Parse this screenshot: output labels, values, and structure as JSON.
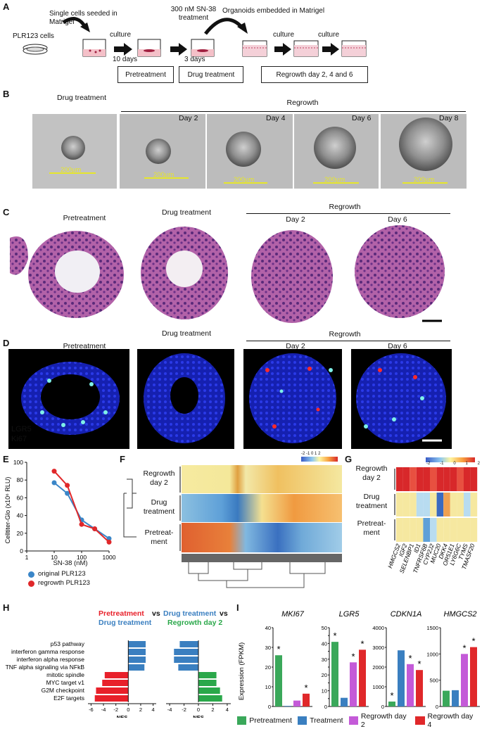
{
  "panels": {
    "A": "A",
    "B": "B",
    "C": "C",
    "D": "D",
    "E": "E",
    "F": "F",
    "G": "G",
    "H": "H",
    "I": "I"
  },
  "panelA": {
    "cells_label": "PLR123 cells",
    "seed_label": "Single cells seeded in Matrigel",
    "culture1": "culture",
    "days10": "10 days",
    "sn38": "300 nM SN-38 treatment",
    "days3": "3 days",
    "embedded": "Organoids embedded in Matrigel",
    "culture2": "culture",
    "culture3": "culture",
    "box_pre": "Pretreatment",
    "box_drug": "Drug treatment",
    "box_regrowth": "Regrowth day 2, 4 and 6"
  },
  "panelB": {
    "drug_treatment": "Drug treatment",
    "regrowth": "Regrowth",
    "days": [
      "Day 2",
      "Day 4",
      "Day 6",
      "Day 8"
    ],
    "scale": "200µm"
  },
  "panelC": {
    "pretreatment": "Pretreatment",
    "drug_treatment": "Drug treatment",
    "regrowth": "Regrowth",
    "day2": "Day 2",
    "day6": "Day 6"
  },
  "panelD": {
    "pretreatment": "Pretreatment",
    "drug_treatment": "Drug treatment",
    "regrowth": "Regrowth",
    "day2": "Day 2",
    "day6": "Day 6",
    "lgr5": "LGR5",
    "ki67": "Ki67",
    "lgr5_color": "#e8202a",
    "ki67_color": "#33d633"
  },
  "panelE": {
    "ylabel": "Celltiter-Glo (x10⁶ RLU)",
    "xlabel": "SN-38 (nM)",
    "legend_original": "original PLR123",
    "legend_regrowth": "regrowth PLR123",
    "yticks": [
      "0",
      "20",
      "40",
      "60",
      "80",
      "100"
    ],
    "xticks": [
      "1",
      "10",
      "100",
      "1000"
    ]
  },
  "panelF": {
    "rows": [
      "Regrowth day 2",
      "Drug treatment",
      "Pretreat- ment"
    ],
    "scale_ticks": [
      "-2",
      "-1.5",
      "-1",
      "-.5",
      "0",
      ".5",
      "1",
      "1.5",
      "2"
    ]
  },
  "panelG": {
    "rows": [
      "Regrowth day 2",
      "Drug treatment",
      "Pretreat- ment"
    ],
    "genes": [
      "HMGCS2",
      "IGF2",
      "SELENBP1",
      "ID1",
      "TNFRSF6B",
      "CYP2J2",
      "MUC20",
      "DKK4",
      "OR51E1",
      "LY6G6C",
      "TYMS",
      "TMASF20"
    ],
    "scale_ticks": [
      "-2",
      "-1",
      "0",
      "1",
      "2"
    ]
  },
  "panelH": {
    "title_left_a": "Pretreatment",
    "title_left_vs": "vs",
    "title_left_b": "Drug treatment",
    "title_right_a": "Drug treatment",
    "title_right_vs": "vs",
    "title_right_b": "Regrowth day 2",
    "pathways": [
      "p53 pathway",
      "interferon gamma response",
      "interferon alpha response",
      "TNF alpha signaling via NFkB",
      "mitotic spindle",
      "MYC target v1",
      "G2M checkpoint",
      "E2F targets"
    ],
    "xlabel": "NES",
    "color_pre": "#e8202a",
    "color_drug": "#3a7fc0",
    "color_regrowth": "#2aa84a"
  },
  "panelI": {
    "ylabel": "Expression (FPKM)",
    "genes": [
      "MKI67",
      "LGR5",
      "CDKN1A",
      "HMGCS2"
    ],
    "legend": [
      "Pretreatment",
      "Treatment",
      "Regrowth day 2",
      "Regrowth day 4"
    ],
    "colors": [
      "#3aa85a",
      "#3a7fc0",
      "#c45ad8",
      "#e0282a"
    ]
  },
  "chart_data": [
    {
      "type": "line",
      "panel": "E",
      "ylabel": "Celltiter-Glo (x10⁶ RLU)",
      "xlabel": "SN-38 (nM)",
      "xscale": "log",
      "xlim": [
        1,
        1000
      ],
      "ylim": [
        0,
        100
      ],
      "series": [
        {
          "name": "original PLR123",
          "color": "#3a86c8",
          "x": [
            10,
            30,
            100,
            300,
            1000
          ],
          "y": [
            77,
            65,
            35,
            25,
            14
          ]
        },
        {
          "name": "regrowth PLR123",
          "color": "#e0282a",
          "x": [
            10,
            30,
            100,
            300,
            1000
          ],
          "y": [
            90,
            74,
            30,
            25,
            10
          ]
        }
      ]
    },
    {
      "type": "bar",
      "panel": "H-left",
      "title": "Pretreatment vs Drug treatment",
      "xlabel": "NES",
      "xticks": [
        -6,
        -4,
        -2,
        0,
        2,
        4
      ],
      "categories": [
        "p53 pathway",
        "interferon gamma response",
        "interferon alpha response",
        "TNF alpha signaling via NFkB",
        "mitotic spindle",
        "MYC target v1",
        "G2M checkpoint",
        "E2F targets"
      ],
      "values": [
        2.8,
        2.8,
        2.8,
        2.6,
        -3.8,
        -4.2,
        -5.2,
        -5.4
      ]
    },
    {
      "type": "bar",
      "panel": "H-right",
      "title": "Drug treatment vs Regrowth day 2",
      "xlabel": "NES",
      "xticks": [
        -4,
        -2,
        0,
        2,
        4
      ],
      "categories": [
        "p53 pathway",
        "interferon gamma response",
        "interferon alpha response",
        "TNF alpha signaling via NFkB",
        "mitotic spindle",
        "MYC target v1",
        "G2M checkpoint",
        "E2F targets"
      ],
      "values": [
        -2.6,
        -3.4,
        -3.4,
        -2.8,
        2.5,
        2.5,
        3.0,
        3.3
      ]
    },
    {
      "type": "bar",
      "panel": "I",
      "ylabel": "Expression (FPKM)",
      "series_names": [
        "Pretreatment",
        "Treatment",
        "Regrowth day 2",
        "Regrowth day 4"
      ],
      "charts": [
        {
          "gene": "MKI67",
          "ylim": [
            0,
            40
          ],
          "yticks": [
            0,
            10,
            20,
            30,
            40
          ],
          "values": [
            26,
            0.3,
            3,
            6.5
          ],
          "star": [
            true,
            false,
            false,
            true
          ]
        },
        {
          "gene": "LGR5",
          "ylim": [
            0,
            50
          ],
          "yticks": [
            0,
            5,
            10,
            15,
            20,
            25,
            30,
            35,
            40,
            45,
            50
          ],
          "values": [
            41,
            5.5,
            28,
            36
          ],
          "star": [
            true,
            false,
            true,
            true
          ]
        },
        {
          "gene": "CDKN1A",
          "ylim": [
            0,
            4000
          ],
          "yticks": [
            0,
            1000,
            2000,
            3000,
            4000
          ],
          "values": [
            250,
            2850,
            2150,
            1850
          ],
          "star": [
            true,
            false,
            true,
            true
          ]
        },
        {
          "gene": "HMGCS2",
          "ylim": [
            0,
            1500
          ],
          "yticks": [
            0,
            500,
            1000,
            1500
          ],
          "values": [
            300,
            310,
            1000,
            1130
          ],
          "star": [
            false,
            false,
            true,
            true
          ]
        }
      ]
    }
  ]
}
